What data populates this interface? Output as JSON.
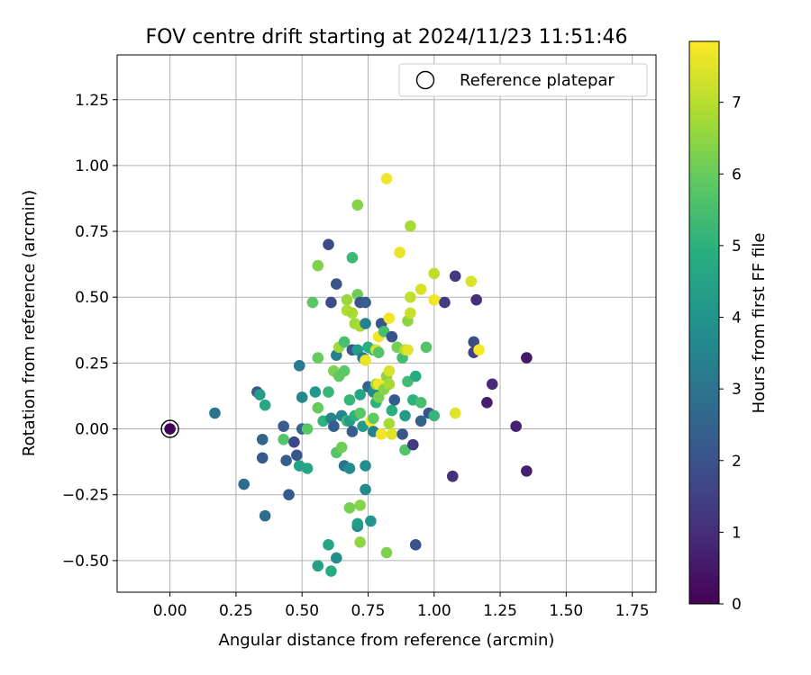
{
  "chart_data": {
    "type": "scatter",
    "title": "FOV centre drift starting at 2024/11/23 11:51:46",
    "xlabel": "Angular distance from reference (arcmin)",
    "ylabel": "Rotation from reference (arcmin)",
    "xlim": [
      -0.2,
      1.84
    ],
    "ylim": [
      -0.62,
      1.42
    ],
    "xticks": [
      0.0,
      0.25,
      0.5,
      0.75,
      1.0,
      1.25,
      1.5,
      1.75
    ],
    "xtick_labels": [
      "0.00",
      "0.25",
      "0.50",
      "0.75",
      "1.00",
      "1.25",
      "1.50",
      "1.75"
    ],
    "yticks": [
      -0.5,
      -0.25,
      0.0,
      0.25,
      0.5,
      0.75,
      1.0,
      1.25
    ],
    "ytick_labels": [
      "−0.50",
      "−0.25",
      "0.00",
      "0.25",
      "0.50",
      "0.75",
      "1.00",
      "1.25"
    ],
    "grid": true,
    "colormap": "viridis",
    "colorbar": {
      "label": "Hours from first FF file",
      "range": [
        0,
        7.85
      ],
      "ticks": [
        0,
        1,
        2,
        3,
        4,
        5,
        6,
        7
      ],
      "tick_labels": [
        "0",
        "1",
        "2",
        "3",
        "4",
        "5",
        "6",
        "7"
      ]
    },
    "legend": {
      "position": "top-right",
      "entries": [
        {
          "label": "Reference platepar",
          "marker": "open-circle"
        }
      ]
    },
    "reference_point": {
      "x": 0.0,
      "y": 0.0,
      "hours": 0
    },
    "points": [
      {
        "x": 0.0,
        "y": 0.0,
        "h": 0.05
      },
      {
        "x": 0.17,
        "y": 0.06,
        "h": 3.0
      },
      {
        "x": 0.28,
        "y": -0.21,
        "h": 2.7
      },
      {
        "x": 0.33,
        "y": 0.14,
        "h": 2.2
      },
      {
        "x": 0.34,
        "y": 0.13,
        "h": 4.3
      },
      {
        "x": 0.35,
        "y": -0.04,
        "h": 2.5
      },
      {
        "x": 0.35,
        "y": -0.11,
        "h": 2.2
      },
      {
        "x": 0.36,
        "y": 0.09,
        "h": 4.7
      },
      {
        "x": 0.36,
        "y": -0.33,
        "h": 2.8
      },
      {
        "x": 0.43,
        "y": 0.01,
        "h": 2.3
      },
      {
        "x": 0.43,
        "y": -0.04,
        "h": 5.7
      },
      {
        "x": 0.44,
        "y": -0.12,
        "h": 2.3
      },
      {
        "x": 0.45,
        "y": -0.25,
        "h": 2.2
      },
      {
        "x": 0.47,
        "y": -0.05,
        "h": 1.7
      },
      {
        "x": 0.48,
        "y": -0.1,
        "h": 2.1
      },
      {
        "x": 0.49,
        "y": 0.24,
        "h": 3.2
      },
      {
        "x": 0.49,
        "y": -0.14,
        "h": 4.5
      },
      {
        "x": 0.5,
        "y": 0.12,
        "h": 3.6
      },
      {
        "x": 0.5,
        "y": 0.0,
        "h": 2.5
      },
      {
        "x": 0.52,
        "y": 0.0,
        "h": 5.8
      },
      {
        "x": 0.52,
        "y": -0.15,
        "h": 4.6
      },
      {
        "x": 0.54,
        "y": 0.48,
        "h": 5.8
      },
      {
        "x": 0.55,
        "y": 0.14,
        "h": 4.2
      },
      {
        "x": 0.56,
        "y": -0.52,
        "h": 4.4
      },
      {
        "x": 0.56,
        "y": 0.62,
        "h": 6.3
      },
      {
        "x": 0.56,
        "y": 0.27,
        "h": 6.0
      },
      {
        "x": 0.56,
        "y": 0.08,
        "h": 6.0
      },
      {
        "x": 0.58,
        "y": 0.03,
        "h": 5.0
      },
      {
        "x": 0.6,
        "y": 0.7,
        "h": 1.8
      },
      {
        "x": 0.6,
        "y": -0.44,
        "h": 4.6
      },
      {
        "x": 0.6,
        "y": 0.14,
        "h": 5.2
      },
      {
        "x": 0.61,
        "y": 0.04,
        "h": 3.5
      },
      {
        "x": 0.61,
        "y": 0.48,
        "h": 1.8
      },
      {
        "x": 0.61,
        "y": -0.54,
        "h": 4.8
      },
      {
        "x": 0.62,
        "y": 0.22,
        "h": 6.3
      },
      {
        "x": 0.62,
        "y": 0.01,
        "h": 2.3
      },
      {
        "x": 0.63,
        "y": 0.55,
        "h": 2.0
      },
      {
        "x": 0.63,
        "y": 0.28,
        "h": 3.4
      },
      {
        "x": 0.63,
        "y": -0.09,
        "h": 5.7
      },
      {
        "x": 0.63,
        "y": -0.49,
        "h": 3.9
      },
      {
        "x": 0.64,
        "y": 0.2,
        "h": 5.9
      },
      {
        "x": 0.64,
        "y": 0.31,
        "h": 6.7
      },
      {
        "x": 0.65,
        "y": -0.07,
        "h": 6.1
      },
      {
        "x": 0.65,
        "y": 0.05,
        "h": 3.6
      },
      {
        "x": 0.66,
        "y": 0.33,
        "h": 5.5
      },
      {
        "x": 0.66,
        "y": 0.22,
        "h": 5.8
      },
      {
        "x": 0.66,
        "y": -0.14,
        "h": 3.0
      },
      {
        "x": 0.67,
        "y": 0.03,
        "h": 5.4
      },
      {
        "x": 0.67,
        "y": 0.49,
        "h": 6.6
      },
      {
        "x": 0.67,
        "y": 0.45,
        "h": 6.9
      },
      {
        "x": 0.68,
        "y": -0.3,
        "h": 6.2
      },
      {
        "x": 0.68,
        "y": 0.11,
        "h": 5.2
      },
      {
        "x": 0.68,
        "y": 0.03,
        "h": 4.3
      },
      {
        "x": 0.68,
        "y": -0.15,
        "h": 3.8
      },
      {
        "x": 0.69,
        "y": 0.65,
        "h": 5.3
      },
      {
        "x": 0.69,
        "y": 0.44,
        "h": 6.8
      },
      {
        "x": 0.69,
        "y": 0.3,
        "h": 2.0
      },
      {
        "x": 0.69,
        "y": -0.01,
        "h": 2.3
      },
      {
        "x": 0.7,
        "y": 0.4,
        "h": 6.7
      },
      {
        "x": 0.7,
        "y": 0.05,
        "h": 5.0
      },
      {
        "x": 0.71,
        "y": 0.85,
        "h": 6.4
      },
      {
        "x": 0.71,
        "y": 0.51,
        "h": 6.1
      },
      {
        "x": 0.71,
        "y": 0.3,
        "h": 4.3
      },
      {
        "x": 0.71,
        "y": -0.37,
        "h": 3.8
      },
      {
        "x": 0.71,
        "y": -0.36,
        "h": 4.3
      },
      {
        "x": 0.72,
        "y": 0.48,
        "h": 2.0
      },
      {
        "x": 0.72,
        "y": 0.39,
        "h": 6.8
      },
      {
        "x": 0.72,
        "y": 0.13,
        "h": 4.6
      },
      {
        "x": 0.72,
        "y": 0.06,
        "h": 5.8
      },
      {
        "x": 0.72,
        "y": -0.29,
        "h": 6.4
      },
      {
        "x": 0.72,
        "y": -0.43,
        "h": 6.5
      },
      {
        "x": 0.73,
        "y": 0.01,
        "h": 4.2
      },
      {
        "x": 0.73,
        "y": 0.27,
        "h": 3.2
      },
      {
        "x": 0.74,
        "y": 0.48,
        "h": 2.3
      },
      {
        "x": 0.74,
        "y": 0.4,
        "h": 3.4
      },
      {
        "x": 0.74,
        "y": 0.26,
        "h": 7.6
      },
      {
        "x": 0.74,
        "y": -0.14,
        "h": 3.8
      },
      {
        "x": 0.74,
        "y": -0.23,
        "h": 3.7
      },
      {
        "x": 0.75,
        "y": 0.31,
        "h": 4.9
      },
      {
        "x": 0.75,
        "y": 0.16,
        "h": 2.6
      },
      {
        "x": 0.76,
        "y": 0.03,
        "h": 7.8
      },
      {
        "x": 0.76,
        "y": -0.35,
        "h": 4.1
      },
      {
        "x": 0.77,
        "y": 0.3,
        "h": 5.0
      },
      {
        "x": 0.77,
        "y": 0.14,
        "h": 3.7
      },
      {
        "x": 0.77,
        "y": 0.04,
        "h": 5.9
      },
      {
        "x": 0.77,
        "y": -0.01,
        "h": 3.4
      },
      {
        "x": 0.78,
        "y": 0.3,
        "h": 7.4
      },
      {
        "x": 0.78,
        "y": 0.17,
        "h": 6.8
      },
      {
        "x": 0.78,
        "y": 0.1,
        "h": 5.0
      },
      {
        "x": 0.79,
        "y": 0.35,
        "h": 7.7
      },
      {
        "x": 0.79,
        "y": 0.29,
        "h": 5.7
      },
      {
        "x": 0.79,
        "y": 0.17,
        "h": 7.7
      },
      {
        "x": 0.79,
        "y": 0.12,
        "h": 6.2
      },
      {
        "x": 0.8,
        "y": -0.02,
        "h": 7.7
      },
      {
        "x": 0.8,
        "y": 0.4,
        "h": 2.0
      },
      {
        "x": 0.81,
        "y": 0.37,
        "h": 5.5
      },
      {
        "x": 0.81,
        "y": 0.15,
        "h": 6.4
      },
      {
        "x": 0.82,
        "y": 0.95,
        "h": 7.7
      },
      {
        "x": 0.82,
        "y": 0.2,
        "h": 6.5
      },
      {
        "x": 0.82,
        "y": -0.47,
        "h": 6.3
      },
      {
        "x": 0.83,
        "y": 0.17,
        "h": 6.8
      },
      {
        "x": 0.83,
        "y": 0.02,
        "h": 6.8
      },
      {
        "x": 0.83,
        "y": 0.42,
        "h": 7.7
      },
      {
        "x": 0.83,
        "y": 0.22,
        "h": 7.4
      },
      {
        "x": 0.84,
        "y": 0.35,
        "h": 2.0
      },
      {
        "x": 0.84,
        "y": 0.07,
        "h": 4.9
      },
      {
        "x": 0.84,
        "y": -0.02,
        "h": 7.5
      },
      {
        "x": 0.85,
        "y": 0.11,
        "h": 2.2
      },
      {
        "x": 0.86,
        "y": 0.31,
        "h": 6.2
      },
      {
        "x": 0.87,
        "y": 0.67,
        "h": 7.6
      },
      {
        "x": 0.88,
        "y": -0.02,
        "h": 2.1
      },
      {
        "x": 0.88,
        "y": 0.27,
        "h": 5.4
      },
      {
        "x": 0.89,
        "y": 0.3,
        "h": 6.9
      },
      {
        "x": 0.89,
        "y": 0.05,
        "h": 4.2
      },
      {
        "x": 0.89,
        "y": -0.08,
        "h": 5.7
      },
      {
        "x": 0.9,
        "y": 0.41,
        "h": 6.5
      },
      {
        "x": 0.9,
        "y": 0.18,
        "h": 5.4
      },
      {
        "x": 0.9,
        "y": 0.3,
        "h": 7.5
      },
      {
        "x": 0.91,
        "y": 0.77,
        "h": 6.8
      },
      {
        "x": 0.91,
        "y": 0.44,
        "h": 7.2
      },
      {
        "x": 0.91,
        "y": 0.5,
        "h": 7.1
      },
      {
        "x": 0.92,
        "y": 0.11,
        "h": 5.0
      },
      {
        "x": 0.92,
        "y": -0.06,
        "h": 1.3
      },
      {
        "x": 0.93,
        "y": 0.2,
        "h": 4.8
      },
      {
        "x": 0.93,
        "y": -0.44,
        "h": 2.0
      },
      {
        "x": 0.95,
        "y": 0.53,
        "h": 7.4
      },
      {
        "x": 0.95,
        "y": 0.1,
        "h": 5.5
      },
      {
        "x": 0.95,
        "y": 0.03,
        "h": 2.4
      },
      {
        "x": 0.97,
        "y": 0.31,
        "h": 5.7
      },
      {
        "x": 0.98,
        "y": 0.06,
        "h": 2.0
      },
      {
        "x": 1.0,
        "y": 0.59,
        "h": 7.1
      },
      {
        "x": 1.0,
        "y": 0.49,
        "h": 7.7
      },
      {
        "x": 1.0,
        "y": 0.05,
        "h": 5.2
      },
      {
        "x": 1.04,
        "y": 0.48,
        "h": 1.4
      },
      {
        "x": 1.07,
        "y": -0.18,
        "h": 1.1
      },
      {
        "x": 1.08,
        "y": 0.06,
        "h": 7.5
      },
      {
        "x": 1.08,
        "y": 0.58,
        "h": 1.3
      },
      {
        "x": 1.14,
        "y": 0.56,
        "h": 7.4
      },
      {
        "x": 1.15,
        "y": 0.33,
        "h": 1.8
      },
      {
        "x": 1.15,
        "y": 0.29,
        "h": 1.5
      },
      {
        "x": 1.16,
        "y": 0.49,
        "h": 1.0
      },
      {
        "x": 1.17,
        "y": 0.3,
        "h": 7.8
      },
      {
        "x": 1.2,
        "y": 0.1,
        "h": 0.6
      },
      {
        "x": 1.22,
        "y": 0.17,
        "h": 0.9
      },
      {
        "x": 1.31,
        "y": 0.01,
        "h": 0.7
      },
      {
        "x": 1.35,
        "y": -0.16,
        "h": 0.7
      },
      {
        "x": 1.35,
        "y": 0.27,
        "h": 0.5
      }
    ]
  }
}
